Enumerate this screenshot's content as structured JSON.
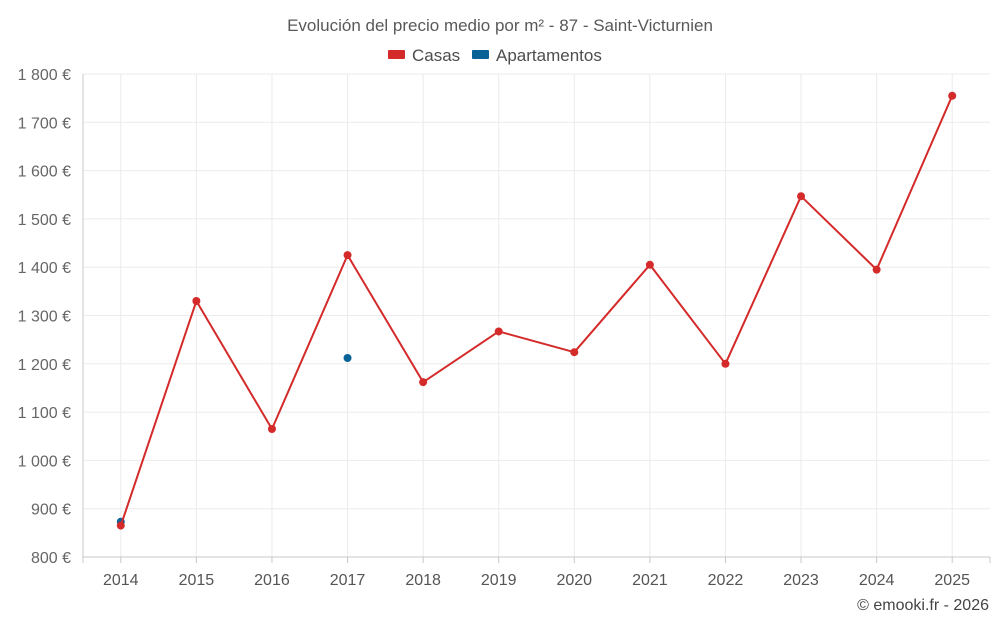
{
  "chart_data": {
    "type": "line",
    "title": "Evolución del precio medio por m² - 87 - Saint-Victurnien",
    "categories": [
      "2014",
      "2015",
      "2016",
      "2017",
      "2018",
      "2019",
      "2020",
      "2021",
      "2022",
      "2023",
      "2024",
      "2025"
    ],
    "ylim": [
      800,
      1800
    ],
    "yticks": [
      800,
      900,
      1000,
      1100,
      1200,
      1300,
      1400,
      1500,
      1600,
      1700,
      1800
    ],
    "ytick_labels": [
      "800 €",
      "900 €",
      "1 000 €",
      "1 100 €",
      "1 200 €",
      "1 300 €",
      "1 400 €",
      "1 500 €",
      "1 600 €",
      "1 700 €",
      "1 800 €"
    ],
    "series": [
      {
        "name": "Casas",
        "color": "#d42a2a",
        "values": [
          865,
          1330,
          1065,
          1425,
          1162,
          1267,
          1224,
          1405,
          1200,
          1547,
          1395,
          1755
        ]
      },
      {
        "name": "Apartamentos",
        "color": "#0a6396",
        "values": [
          873,
          null,
          null,
          1212,
          null,
          null,
          null,
          null,
          null,
          null,
          null,
          null
        ]
      }
    ],
    "legend_position": "top-center",
    "grid": true
  },
  "credit": "© emooki.fr - 2026"
}
